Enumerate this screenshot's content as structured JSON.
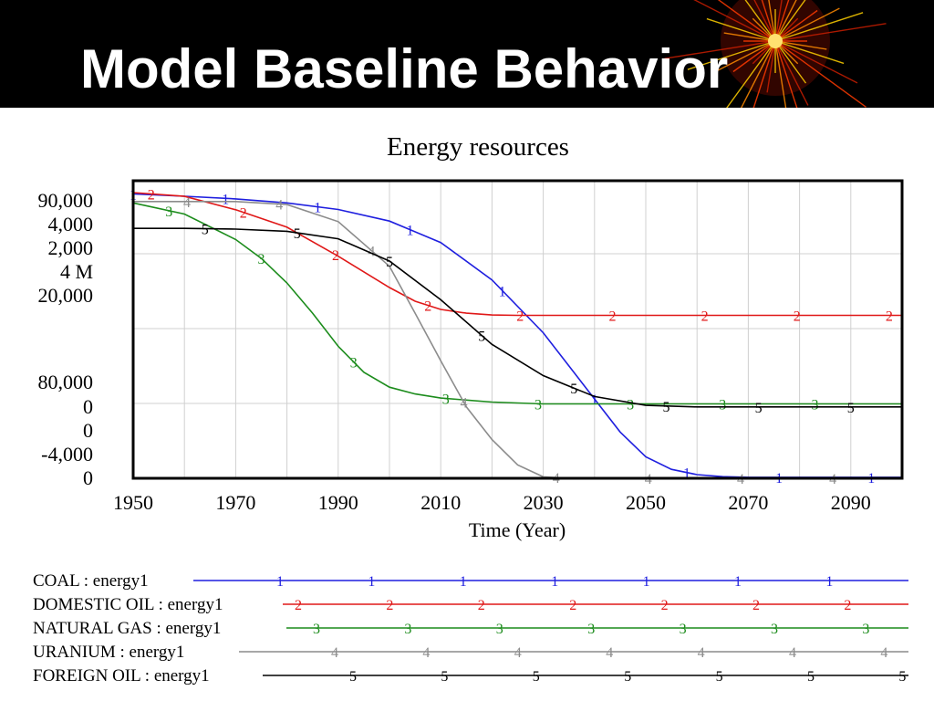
{
  "slide": {
    "title": "Model Baseline Behavior"
  },
  "chart_data": {
    "type": "line",
    "title": "Energy resources",
    "xlabel": "Time (Year)",
    "x_ticks": [
      1950,
      1970,
      1990,
      2010,
      2030,
      2050,
      2070,
      2090
    ],
    "xlim": [
      1950,
      2100
    ],
    "y_tick_labels": [
      "90,000",
      "4,000",
      "2,000",
      "4 M",
      "20,000",
      "80,000",
      "0",
      "0",
      "-4,000",
      "0"
    ],
    "grid": true,
    "note_units": "five stacked y-axis scales (one per series); values are in each series' own scale",
    "series": [
      {
        "name": "COAL : energy1",
        "marker": "1",
        "color": "#1f1fdf",
        "x": [
          1950,
          1960,
          1970,
          1980,
          1990,
          2000,
          2010,
          2020,
          2030,
          2040,
          2045,
          2050,
          2055,
          2060,
          2065,
          2070,
          2080,
          2090,
          2100
        ],
        "values": [
          86000,
          85300,
          84500,
          83300,
          81300,
          77800,
          71300,
          60000,
          44000,
          24000,
          14000,
          6500,
          2700,
          1100,
          500,
          300,
          300,
          300,
          300
        ]
      },
      {
        "name": "DOMESTIC OIL : energy1",
        "marker": "2",
        "color": "#e01818",
        "x": [
          1950,
          1960,
          1970,
          1980,
          1990,
          2000,
          2005,
          2010,
          2015,
          2020,
          2025,
          2030,
          2040,
          2050,
          2060,
          2070,
          2080,
          2090,
          2100
        ],
        "values": [
          3680,
          3580,
          3220,
          2750,
          1970,
          1130,
          760,
          540,
          440,
          390,
          380,
          380,
          380,
          380,
          380,
          380,
          380,
          380,
          380
        ]
      },
      {
        "name": "NATURAL GAS : energy1",
        "marker": "3",
        "color": "#1c8c1c",
        "x": [
          1950,
          1960,
          1970,
          1975,
          1980,
          1985,
          1990,
          1995,
          2000,
          2005,
          2010,
          2020,
          2030,
          2040,
          2050,
          2060,
          2070,
          2080,
          2090,
          2100
        ],
        "values": [
          1851,
          1776,
          1605,
          1478,
          1313,
          1110,
          887,
          713,
          612,
          567,
          539,
          512,
          500,
          500,
          500,
          500,
          500,
          500,
          500,
          500
        ]
      },
      {
        "name": "URANIUM : energy1",
        "marker": "4",
        "color": "#8c8c8c",
        "x": [
          1950,
          1960,
          1970,
          1980,
          1990,
          2000,
          2005,
          2010,
          2015,
          2020,
          2025,
          2030,
          2035,
          2040,
          2060,
          2080,
          2100
        ],
        "values": [
          3720000,
          3720000,
          3720000,
          3680000,
          3450000,
          2850000,
          2220000,
          1580000,
          960000,
          520000,
          180000,
          20000,
          0,
          0,
          0,
          0,
          0
        ]
      },
      {
        "name": "FOREIGN OIL : energy1",
        "marker": "5",
        "color": "#000000",
        "x": [
          1950,
          1960,
          1970,
          1980,
          1990,
          2000,
          2010,
          2020,
          2030,
          2040,
          2050,
          2060,
          2070,
          2080,
          2090,
          2100
        ],
        "values": [
          16800,
          16800,
          16750,
          16600,
          16100,
          14600,
          12000,
          9000,
          6900,
          5500,
          4900,
          4800,
          4800,
          4800,
          4800,
          4800
        ]
      }
    ]
  }
}
